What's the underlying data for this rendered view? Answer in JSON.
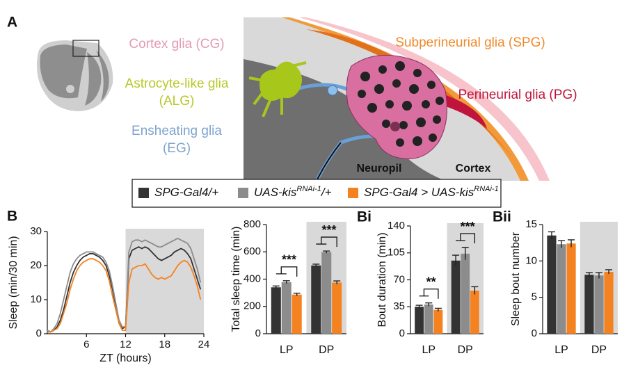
{
  "diagram": {
    "panel": "A",
    "cortex_glia": "Cortex glia (CG)",
    "alg_1": "Astrocyte-like glia",
    "alg_2": "(ALG)",
    "eg_1": "Ensheating glia",
    "eg_2": "(EG)",
    "spg": "Subperineurial glia (SPG)",
    "pg": "Perineurial glia (PG)",
    "neuropil": "Neuropil",
    "cortex": "Cortex"
  },
  "legend": [
    {
      "text": "SPG-Gal4/+",
      "color": "#333333"
    },
    {
      "text": "UAS-kis",
      "sup": "RNAi-1",
      "after": "/+",
      "color": "#8c8c8c"
    },
    {
      "text": "SPG-Gal4 > UAS-kis",
      "sup": "RNAi-1",
      "color": "#f58220"
    }
  ],
  "chart_data": [
    {
      "type": "line",
      "panel": "B",
      "xlabel": "ZT (hours)",
      "ylabel": "Sleep (min/30 min)",
      "x": [
        0,
        0.5,
        1,
        1.5,
        2,
        2.5,
        3,
        3.5,
        4,
        4.5,
        5,
        5.5,
        6,
        6.5,
        7,
        7.5,
        8,
        8.5,
        9,
        9.5,
        10,
        10.5,
        11,
        11.5,
        12,
        12.5,
        13,
        13.5,
        14,
        14.5,
        15,
        15.5,
        16,
        16.5,
        17,
        17.5,
        18,
        18.5,
        19,
        19.5,
        20,
        20.5,
        21,
        21.5,
        22,
        22.5,
        23,
        23.5
      ],
      "xlim": [
        0,
        24
      ],
      "xticks": [
        6,
        12,
        18,
        24
      ],
      "ylim": [
        0,
        30
      ],
      "yticks": [
        0,
        10,
        20,
        30
      ],
      "shade_x": [
        12,
        24
      ],
      "series": [
        {
          "color": "#333333",
          "values": [
            1,
            0.5,
            1,
            2,
            4,
            7,
            11,
            15,
            18,
            20,
            21.5,
            22.5,
            23,
            23.5,
            23.5,
            23,
            22.5,
            21.5,
            20,
            17,
            13,
            8,
            3,
            1.5,
            2,
            22,
            24.5,
            25,
            25.5,
            25,
            25.5,
            25,
            24,
            23,
            22,
            21.5,
            22,
            22.5,
            23,
            24,
            24.5,
            25,
            24.5,
            23.5,
            22,
            19,
            16,
            13
          ]
        },
        {
          "color": "#8c8c8c",
          "values": [
            1,
            0.5,
            1.5,
            3,
            6,
            10,
            14,
            18,
            20.5,
            22,
            23,
            23.5,
            24,
            24,
            24,
            23.5,
            23,
            22.5,
            21,
            18.5,
            14,
            9,
            4,
            2,
            2,
            24,
            27,
            27.5,
            27.5,
            27,
            27.5,
            27,
            26.5,
            26,
            25.5,
            25.5,
            26,
            26.5,
            27,
            27.5,
            28,
            27.5,
            27,
            26.5,
            25,
            22,
            19,
            15
          ]
        },
        {
          "color": "#f58220",
          "values": [
            0.5,
            0.5,
            1,
            1.5,
            3,
            6,
            9,
            13,
            16,
            18.5,
            20,
            21,
            21.5,
            22,
            22,
            21.5,
            21,
            20,
            18.5,
            15.5,
            11,
            7,
            3,
            1,
            1,
            15,
            19,
            19.5,
            20,
            20,
            20.5,
            19,
            17.5,
            16.5,
            16,
            16.5,
            16,
            16.5,
            17,
            18.5,
            20,
            21,
            21.5,
            21,
            19.5,
            17,
            14,
            10
          ]
        }
      ]
    },
    {
      "type": "bar",
      "ylabel": "Total sleep time (min)",
      "categories": [
        "LP",
        "DP"
      ],
      "shaded_index": 1,
      "ylim": [
        0,
        800
      ],
      "yticks": [
        0,
        200,
        400,
        600,
        800
      ],
      "series": [
        {
          "color": "#333333",
          "values": [
            340,
            500
          ],
          "errors": [
            10,
            10
          ]
        },
        {
          "color": "#8c8c8c",
          "values": [
            378,
            598
          ],
          "errors": [
            10,
            8
          ]
        },
        {
          "color": "#f58220",
          "values": [
            287,
            375
          ],
          "errors": [
            10,
            12
          ]
        }
      ],
      "annotations": [
        {
          "text": "***",
          "category": 0
        },
        {
          "text": "***",
          "category": 1
        }
      ]
    },
    {
      "type": "bar",
      "panel": "Bi",
      "ylabel": "Bout duration (min)",
      "categories": [
        "LP",
        "DP"
      ],
      "shaded_index": 1,
      "ylim": [
        0,
        140
      ],
      "yticks": [
        0,
        35,
        70,
        105,
        140
      ],
      "series": [
        {
          "color": "#333333",
          "values": [
            35,
            95
          ],
          "errors": [
            2,
            7
          ]
        },
        {
          "color": "#8c8c8c",
          "values": [
            38,
            104
          ],
          "errors": [
            2,
            8
          ]
        },
        {
          "color": "#f58220",
          "values": [
            31,
            56
          ],
          "errors": [
            2,
            5
          ]
        }
      ],
      "annotations": [
        {
          "text": "**",
          "category": 0
        },
        {
          "text": "***",
          "category": 1
        }
      ]
    },
    {
      "type": "bar",
      "panel": "Bii",
      "ylabel": "Sleep bout number",
      "categories": [
        "LP",
        "DP"
      ],
      "shaded_index": 1,
      "ylim": [
        0,
        15
      ],
      "yticks": [
        0,
        5,
        10,
        15
      ],
      "series": [
        {
          "color": "#333333",
          "values": [
            13.5,
            8.1
          ],
          "errors": [
            0.5,
            0.3
          ]
        },
        {
          "color": "#8c8c8c",
          "values": [
            12.3,
            8
          ],
          "errors": [
            0.5,
            0.4
          ]
        },
        {
          "color": "#f58220",
          "values": [
            12.4,
            8.5
          ],
          "errors": [
            0.5,
            0.3
          ]
        }
      ],
      "annotations": []
    }
  ]
}
